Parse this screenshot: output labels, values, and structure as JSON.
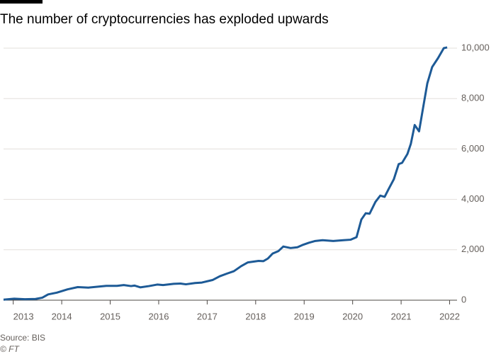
{
  "chart_data": {
    "type": "line",
    "title": "The number of cryptocurrencies has exploded upwards",
    "source": "Source: BIS",
    "credit": "© FT",
    "x": [
      2012.8,
      2013.02,
      2013.24,
      2013.46,
      2013.6,
      2013.72,
      2013.9,
      2014.12,
      2014.33,
      2014.55,
      2014.77,
      2014.92,
      2015.14,
      2015.28,
      2015.43,
      2015.5,
      2015.62,
      2015.8,
      2015.97,
      2016.09,
      2016.31,
      2016.45,
      2016.56,
      2016.75,
      2016.89,
      2017.11,
      2017.26,
      2017.4,
      2017.55,
      2017.7,
      2017.84,
      2018.06,
      2018.16,
      2018.25,
      2018.35,
      2018.47,
      2018.57,
      2018.72,
      2018.86,
      2018.98,
      2019.1,
      2019.23,
      2019.38,
      2019.6,
      2019.81,
      2019.96,
      2020.08,
      2020.18,
      2020.27,
      2020.35,
      2020.47,
      2020.57,
      2020.66,
      2020.74,
      2020.85,
      2020.95,
      2021.02,
      2021.13,
      2021.2,
      2021.28,
      2021.37,
      2021.45,
      2021.54,
      2021.64,
      2021.76,
      2021.88,
      2021.95
    ],
    "series": [
      {
        "name": "Cryptocurrencies",
        "color": "#1d5a96",
        "values": [
          20,
          60,
          40,
          50,
          100,
          230,
          300,
          430,
          520,
          500,
          540,
          570,
          570,
          600,
          560,
          580,
          510,
          560,
          620,
          600,
          650,
          660,
          630,
          680,
          700,
          800,
          950,
          1050,
          1150,
          1350,
          1500,
          1560,
          1550,
          1650,
          1850,
          1950,
          2130,
          2070,
          2100,
          2200,
          2280,
          2350,
          2380,
          2350,
          2380,
          2400,
          2500,
          3200,
          3450,
          3430,
          3900,
          4150,
          4100,
          4400,
          4800,
          5400,
          5450,
          5800,
          6200,
          6950,
          6700,
          7600,
          8600,
          9250,
          9600,
          10000,
          10030
        ]
      }
    ],
    "xlim": [
      2012.8,
      2022.08
    ],
    "xticks": [
      2013,
      2014,
      2015,
      2016,
      2017,
      2018,
      2019,
      2020,
      2021,
      2022
    ],
    "ylim": [
      0,
      10000
    ],
    "yticks": [
      0,
      {
        "value": 2000,
        "label": "2,000"
      },
      {
        "value": 4000,
        "label": "4,000"
      },
      {
        "value": 6000,
        "label": "6,000"
      },
      {
        "value": 8000,
        "label": "8,000"
      },
      {
        "value": 10000,
        "label": "10,000"
      }
    ],
    "grid": true
  }
}
